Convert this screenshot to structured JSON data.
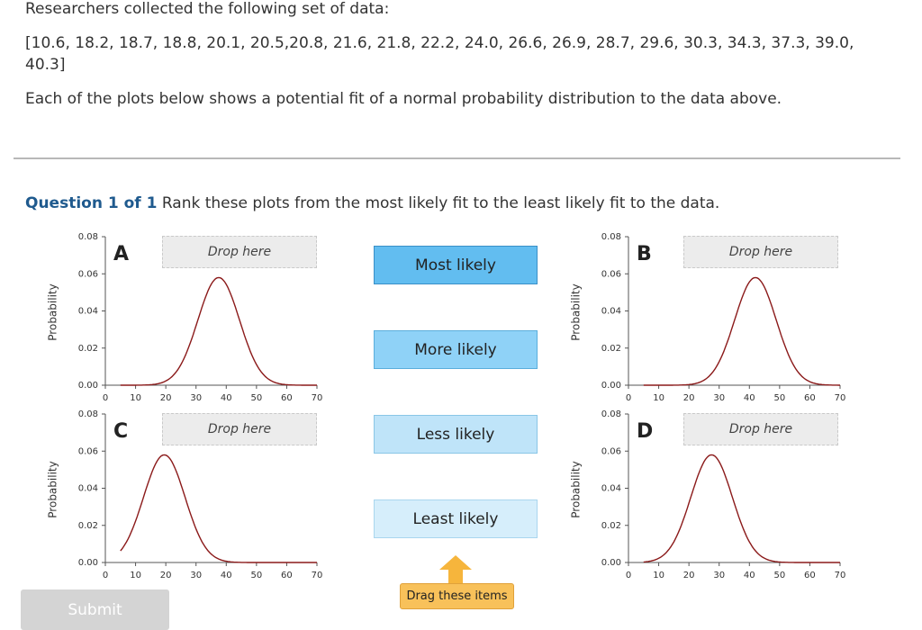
{
  "intro": {
    "line1": "Researchers collected the following set of data:",
    "data_line1": "[10.6, 18.2, 18.7, 18.8, 20.1, 20.5,20.8, 21.6, 21.8, 22.2, 24.0, 26.6, 26.9, 28.7, 29.6, 30.3, 34.3, 37.3, 39.0,",
    "data_line2": "40.3]",
    "line3": "Each of the plots below shows a potential fit of a normal probability distribution to the data above."
  },
  "question": {
    "number": "Question 1 of 1",
    "prompt": "Rank these plots from the most likely fit to the least likely fit to the data."
  },
  "plots": [
    {
      "label": "A",
      "drop_text": "Drop here",
      "ylabel": "Probability"
    },
    {
      "label": "B",
      "drop_text": "Drop here",
      "ylabel": "Probability"
    },
    {
      "label": "C",
      "drop_text": "Drop here",
      "ylabel": "Probability"
    },
    {
      "label": "D",
      "drop_text": "Drop here",
      "ylabel": "Probability"
    }
  ],
  "rank_items": [
    "Most likely",
    "More likely",
    "Less likely",
    "Least likely"
  ],
  "rank_colors": [
    "#62bdf0",
    "#8fd2f7",
    "#bfe4f9",
    "#d6eefb"
  ],
  "rank_borders": [
    "#3a8fc7",
    "#5aaedc",
    "#8ac6e6",
    "#a9d6ee"
  ],
  "drag_hint": "Drag these items",
  "submit_label": "Submit",
  "chart_data": [
    {
      "type": "line",
      "title": "A",
      "ylabel": "Probability",
      "xlim": [
        0,
        70
      ],
      "ylim": [
        0,
        0.08
      ],
      "xticks": [
        "0",
        "10",
        "20",
        "30",
        "40",
        "50",
        "60",
        "70"
      ],
      "yticks": [
        "0.00",
        "0.02",
        "0.04",
        "0.06",
        "0.08"
      ],
      "series": [
        {
          "peak_x": 37.5,
          "peak_y": 0.058
        }
      ],
      "line_color": "#8b1a1a"
    },
    {
      "type": "line",
      "title": "B",
      "ylabel": "Probability",
      "xlim": [
        0,
        70
      ],
      "ylim": [
        0,
        0.08
      ],
      "xticks": [
        "0",
        "10",
        "20",
        "30",
        "40",
        "50",
        "60",
        "70"
      ],
      "yticks": [
        "0.00",
        "0.02",
        "0.04",
        "0.06",
        "0.08"
      ],
      "series": [
        {
          "peak_x": 42,
          "peak_y": 0.058
        }
      ],
      "line_color": "#8b1a1a"
    },
    {
      "type": "line",
      "title": "C",
      "ylabel": "Probability",
      "xlim": [
        0,
        70
      ],
      "ylim": [
        0,
        0.08
      ],
      "xticks": [
        "0",
        "10",
        "20",
        "30",
        "40",
        "50",
        "60",
        "70"
      ],
      "yticks": [
        "0.00",
        "0.02",
        "0.04",
        "0.06",
        "0.08"
      ],
      "series": [
        {
          "peak_x": 19.5,
          "peak_y": 0.058
        }
      ],
      "line_color": "#8b1a1a"
    },
    {
      "type": "line",
      "title": "D",
      "ylabel": "Probability",
      "xlim": [
        0,
        70
      ],
      "ylim": [
        0,
        0.08
      ],
      "xticks": [
        "0",
        "10",
        "20",
        "30",
        "40",
        "50",
        "60",
        "70"
      ],
      "yticks": [
        "0.00",
        "0.02",
        "0.04",
        "0.06",
        "0.08"
      ],
      "series": [
        {
          "peak_x": 27.5,
          "peak_y": 0.058
        }
      ],
      "line_color": "#8b1a1a"
    }
  ]
}
